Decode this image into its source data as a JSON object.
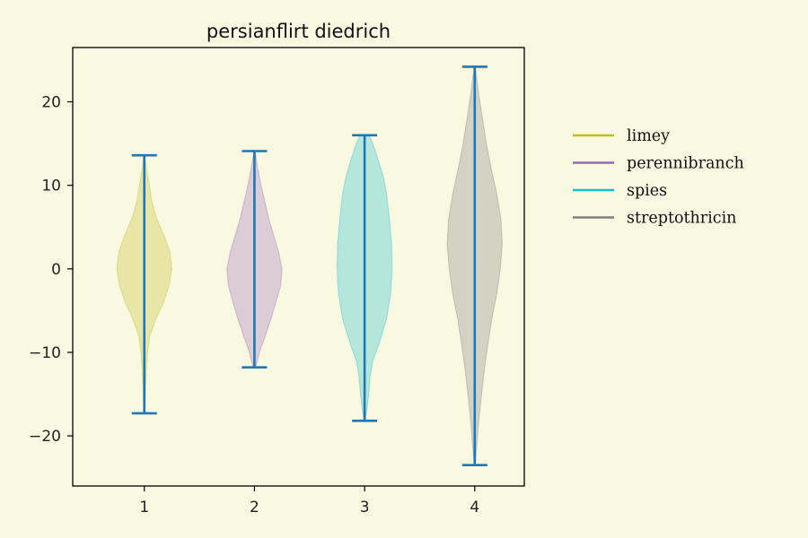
{
  "chart_data": {
    "type": "violin",
    "title": "persianflirt diedrich",
    "xlabel": "",
    "ylabel": "",
    "x_ticks": [
      "1",
      "2",
      "3",
      "4"
    ],
    "y_ticks": [
      20,
      10,
      0,
      -10,
      -20
    ],
    "y_tick_labels": [
      "20",
      "10",
      "0",
      "−10",
      "−20"
    ],
    "xlim": [
      0.35,
      4.45
    ],
    "ylim": [
      -26,
      26.5
    ],
    "grid": false,
    "legend_position": "right, outside plot",
    "whisker_color": "#1f77b4",
    "series": [
      {
        "name": "limey",
        "position": 1,
        "color": "#bcbd22",
        "min": -17.3,
        "max": 13.6,
        "density": [
          [
            -17.3,
            0.015
          ],
          [
            -16,
            0.03
          ],
          [
            -14,
            0.05
          ],
          [
            -12,
            0.08
          ],
          [
            -10,
            0.12
          ],
          [
            -8,
            0.2
          ],
          [
            -6,
            0.42
          ],
          [
            -4,
            0.7
          ],
          [
            -2,
            0.9
          ],
          [
            0,
            1.0
          ],
          [
            2,
            0.93
          ],
          [
            4,
            0.72
          ],
          [
            6,
            0.45
          ],
          [
            8,
            0.28
          ],
          [
            10,
            0.18
          ],
          [
            12,
            0.08
          ],
          [
            13.6,
            0.02
          ]
        ]
      },
      {
        "name": "perennibranch",
        "position": 2,
        "color": "#9467bd",
        "min": -11.8,
        "max": 14.1,
        "density": [
          [
            -11.8,
            0.05
          ],
          [
            -10,
            0.18
          ],
          [
            -8,
            0.4
          ],
          [
            -6,
            0.6
          ],
          [
            -4,
            0.78
          ],
          [
            -2,
            0.95
          ],
          [
            0,
            1.0
          ],
          [
            2,
            0.88
          ],
          [
            4,
            0.7
          ],
          [
            6,
            0.52
          ],
          [
            8,
            0.38
          ],
          [
            10,
            0.24
          ],
          [
            12,
            0.12
          ],
          [
            14.1,
            0.02
          ]
        ]
      },
      {
        "name": "spies",
        "position": 3,
        "color": "#17becf",
        "min": -18.2,
        "max": 16.0,
        "density": [
          [
            -18.2,
            0.02
          ],
          [
            -17,
            0.08
          ],
          [
            -15,
            0.15
          ],
          [
            -13,
            0.2
          ],
          [
            -11,
            0.3
          ],
          [
            -9,
            0.52
          ],
          [
            -6,
            0.8
          ],
          [
            -3,
            0.95
          ],
          [
            0,
            1.0
          ],
          [
            3,
            0.98
          ],
          [
            6,
            0.9
          ],
          [
            9,
            0.8
          ],
          [
            11,
            0.68
          ],
          [
            13,
            0.5
          ],
          [
            15,
            0.3
          ],
          [
            16,
            0.16
          ]
        ]
      },
      {
        "name": "streptothricin",
        "position": 4,
        "color": "#7f7f7f",
        "min": -23.5,
        "max": 24.2,
        "density": [
          [
            -23.5,
            0.02
          ],
          [
            -21,
            0.08
          ],
          [
            -18,
            0.15
          ],
          [
            -15,
            0.25
          ],
          [
            -12,
            0.35
          ],
          [
            -9,
            0.48
          ],
          [
            -6,
            0.62
          ],
          [
            -3,
            0.8
          ],
          [
            0,
            0.93
          ],
          [
            3,
            1.0
          ],
          [
            6,
            0.95
          ],
          [
            9,
            0.8
          ],
          [
            12,
            0.6
          ],
          [
            15,
            0.42
          ],
          [
            18,
            0.28
          ],
          [
            21,
            0.14
          ],
          [
            24.2,
            0.02
          ]
        ]
      }
    ]
  }
}
